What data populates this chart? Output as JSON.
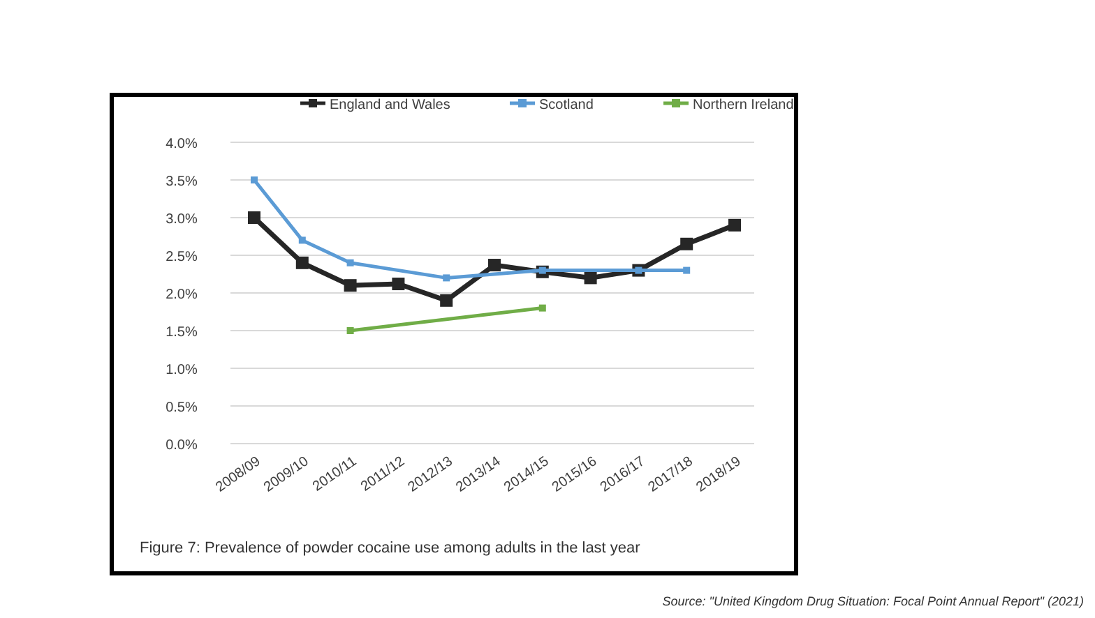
{
  "chart_data": {
    "type": "line",
    "categories": [
      "2008/09",
      "2009/10",
      "2010/11",
      "2011/12",
      "2012/13",
      "2013/14",
      "2014/15",
      "2015/16",
      "2016/17",
      "2017/18",
      "2018/19"
    ],
    "series": [
      {
        "name": "England and Wales",
        "color": "#262626",
        "values": [
          3.0,
          2.4,
          2.1,
          2.12,
          1.9,
          2.37,
          2.28,
          2.2,
          2.3,
          2.65,
          2.9
        ]
      },
      {
        "name": "Scotland",
        "color": "#5b9bd5",
        "values": [
          3.5,
          2.7,
          2.4,
          null,
          2.2,
          null,
          2.3,
          null,
          2.3,
          2.3,
          null
        ]
      },
      {
        "name": "Northern Ireland",
        "color": "#70ad47",
        "values": [
          null,
          null,
          1.5,
          null,
          null,
          null,
          1.8,
          null,
          null,
          null,
          null
        ]
      }
    ],
    "ylim": [
      0,
      4
    ],
    "yticks": [
      {
        "value": 0,
        "label": "0.0%"
      },
      {
        "value": 0.5,
        "label": "0.5%"
      },
      {
        "value": 1,
        "label": "1.0%"
      },
      {
        "value": 1.5,
        "label": "1.5%"
      },
      {
        "value": 2,
        "label": "2.0%"
      },
      {
        "value": 2.5,
        "label": "2.5%"
      },
      {
        "value": 3,
        "label": "3.0%"
      },
      {
        "value": 3.5,
        "label": "3.5%"
      },
      {
        "value": 4,
        "label": "4.0%"
      }
    ],
    "grid": "y",
    "legend": "top",
    "marker": "square",
    "line_style": "solid",
    "annotations": [
      "Figure 7: Prevalence of powder cocaine use among adults in the last year",
      "Source: \"United Kingdom Drug Situation: Focal Point Annual Report\" (2021)"
    ]
  }
}
